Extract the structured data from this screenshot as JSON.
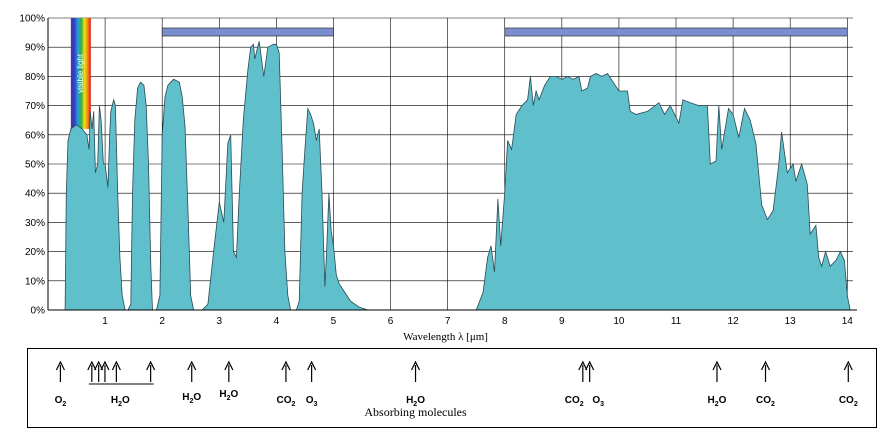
{
  "chart_data": {
    "type": "area",
    "xlabel": "Wavelength  λ [μm]",
    "ylabel": "",
    "xlim": [
      0,
      14.1
    ],
    "ylim": [
      0,
      100
    ],
    "x_ticks": [
      1,
      2,
      3,
      4,
      5,
      6,
      7,
      8,
      9,
      10,
      11,
      12,
      13,
      14
    ],
    "y_ticks": [
      "0%",
      "10%",
      "20%",
      "30%",
      "40%",
      "50%",
      "60%",
      "70%",
      "80%",
      "90%",
      "100%"
    ],
    "grid": true,
    "fill_color": "#5fbfca",
    "stroke_color": "#2a4a55",
    "visible_band_label": "visible light",
    "visible_band_range": [
      0.4,
      0.75
    ],
    "atmospheric_window_bars": [
      [
        2.0,
        5.0
      ],
      [
        8.0,
        14.0
      ]
    ],
    "window_bar_color": "#7b8fd0",
    "series": [
      {
        "points": [
          [
            0.3,
            0
          ],
          [
            0.32,
            40
          ],
          [
            0.35,
            58
          ],
          [
            0.4,
            62
          ],
          [
            0.5,
            63.5
          ],
          [
            0.6,
            62
          ],
          [
            0.68,
            60
          ],
          [
            0.72,
            55
          ],
          [
            0.74,
            68
          ],
          [
            0.77,
            62
          ],
          [
            0.8,
            68
          ],
          [
            0.83,
            47
          ],
          [
            0.87,
            50
          ],
          [
            0.9,
            70
          ],
          [
            0.93,
            65
          ],
          [
            0.97,
            50
          ],
          [
            1.0,
            50
          ],
          [
            1.05,
            42
          ],
          [
            1.08,
            60
          ],
          [
            1.1,
            68
          ],
          [
            1.15,
            72
          ],
          [
            1.18,
            70
          ],
          [
            1.22,
            40
          ],
          [
            1.26,
            18
          ],
          [
            1.3,
            5
          ],
          [
            1.35,
            0
          ],
          [
            1.4,
            0
          ],
          [
            1.45,
            2
          ],
          [
            1.48,
            40
          ],
          [
            1.52,
            65
          ],
          [
            1.57,
            76
          ],
          [
            1.62,
            78
          ],
          [
            1.68,
            77
          ],
          [
            1.72,
            70
          ],
          [
            1.76,
            50
          ],
          [
            1.8,
            15
          ],
          [
            1.83,
            0
          ],
          [
            1.9,
            0
          ],
          [
            1.96,
            5
          ],
          [
            2.0,
            60
          ],
          [
            2.05,
            73
          ],
          [
            2.1,
            77
          ],
          [
            2.2,
            79
          ],
          [
            2.3,
            78
          ],
          [
            2.35,
            73
          ],
          [
            2.4,
            63
          ],
          [
            2.45,
            35
          ],
          [
            2.5,
            5
          ],
          [
            2.55,
            0
          ],
          [
            2.7,
            0
          ],
          [
            2.8,
            2
          ],
          [
            2.9,
            20
          ],
          [
            3.0,
            37
          ],
          [
            3.08,
            30
          ],
          [
            3.15,
            57
          ],
          [
            3.2,
            60
          ],
          [
            3.25,
            20
          ],
          [
            3.3,
            18
          ],
          [
            3.35,
            40
          ],
          [
            3.42,
            65
          ],
          [
            3.5,
            82
          ],
          [
            3.55,
            90
          ],
          [
            3.6,
            91
          ],
          [
            3.62,
            86
          ],
          [
            3.7,
            92
          ],
          [
            3.78,
            80
          ],
          [
            3.85,
            90
          ],
          [
            3.95,
            91
          ],
          [
            4.0,
            91
          ],
          [
            4.05,
            88
          ],
          [
            4.1,
            55
          ],
          [
            4.15,
            20
          ],
          [
            4.2,
            5
          ],
          [
            4.25,
            0
          ],
          [
            4.35,
            0
          ],
          [
            4.4,
            3
          ],
          [
            4.45,
            40
          ],
          [
            4.5,
            55
          ],
          [
            4.55,
            69
          ],
          [
            4.6,
            67
          ],
          [
            4.65,
            64
          ],
          [
            4.7,
            58
          ],
          [
            4.75,
            62
          ],
          [
            4.8,
            40
          ],
          [
            4.85,
            8
          ],
          [
            4.88,
            20
          ],
          [
            4.92,
            40
          ],
          [
            4.96,
            27
          ],
          [
            5.0,
            22
          ],
          [
            5.05,
            12
          ],
          [
            5.1,
            9
          ],
          [
            5.2,
            6
          ],
          [
            5.3,
            3
          ],
          [
            5.45,
            1
          ],
          [
            5.6,
            0
          ],
          [
            7.5,
            0
          ],
          [
            7.62,
            6
          ],
          [
            7.7,
            18
          ],
          [
            7.76,
            22
          ],
          [
            7.82,
            13
          ],
          [
            7.88,
            38
          ],
          [
            7.93,
            22
          ],
          [
            8.0,
            40
          ],
          [
            8.05,
            58
          ],
          [
            8.12,
            55
          ],
          [
            8.2,
            67
          ],
          [
            8.3,
            70
          ],
          [
            8.4,
            72
          ],
          [
            8.45,
            80
          ],
          [
            8.5,
            70
          ],
          [
            8.55,
            75
          ],
          [
            8.6,
            72
          ],
          [
            8.7,
            77
          ],
          [
            8.8,
            80
          ],
          [
            8.9,
            80
          ],
          [
            9.0,
            79
          ],
          [
            9.1,
            80
          ],
          [
            9.2,
            79
          ],
          [
            9.3,
            80
          ],
          [
            9.35,
            75
          ],
          [
            9.45,
            76
          ],
          [
            9.5,
            80
          ],
          [
            9.6,
            81
          ],
          [
            9.7,
            80
          ],
          [
            9.8,
            81
          ],
          [
            9.9,
            78
          ],
          [
            10.0,
            75
          ],
          [
            10.15,
            75
          ],
          [
            10.2,
            68
          ],
          [
            10.3,
            67
          ],
          [
            10.5,
            68
          ],
          [
            10.7,
            71
          ],
          [
            10.8,
            67
          ],
          [
            10.9,
            70
          ],
          [
            11.0,
            66
          ],
          [
            11.05,
            64
          ],
          [
            11.12,
            72
          ],
          [
            11.25,
            71
          ],
          [
            11.4,
            70
          ],
          [
            11.55,
            70
          ],
          [
            11.6,
            50
          ],
          [
            11.7,
            51
          ],
          [
            11.75,
            70
          ],
          [
            11.8,
            55
          ],
          [
            11.92,
            69
          ],
          [
            12.0,
            67
          ],
          [
            12.1,
            59
          ],
          [
            12.2,
            69
          ],
          [
            12.3,
            65
          ],
          [
            12.4,
            57
          ],
          [
            12.5,
            36
          ],
          [
            12.6,
            31
          ],
          [
            12.7,
            34
          ],
          [
            12.8,
            50
          ],
          [
            12.85,
            61
          ],
          [
            12.95,
            47
          ],
          [
            13.05,
            50
          ],
          [
            13.1,
            44
          ],
          [
            13.2,
            50
          ],
          [
            13.3,
            43
          ],
          [
            13.35,
            26
          ],
          [
            13.45,
            29
          ],
          [
            13.5,
            18
          ],
          [
            13.55,
            15
          ],
          [
            13.62,
            20
          ],
          [
            13.7,
            15
          ],
          [
            13.8,
            17
          ],
          [
            13.88,
            20
          ],
          [
            13.95,
            17
          ],
          [
            14.0,
            5
          ],
          [
            14.05,
            0
          ]
        ]
      }
    ]
  },
  "molecules": {
    "title": "Absorbing molecules",
    "arrows_um": [
      0.2,
      0.75,
      0.87,
      0.98,
      1.18,
      1.78,
      2.5,
      3.15,
      4.15,
      4.6,
      6.42,
      9.35,
      9.47,
      11.7,
      12.55,
      14.0
    ],
    "h2o_group_range": [
      0.75,
      1.78
    ],
    "labels": [
      {
        "x_um": 0.2,
        "base": "O",
        "sub": "2"
      },
      {
        "x_um": 1.25,
        "base": "H",
        "sub": "2",
        "tail": "O"
      },
      {
        "x_um": 2.5,
        "base": "H",
        "sub": "2",
        "tail": "O"
      },
      {
        "x_um": 3.15,
        "base": "H",
        "sub": "2",
        "tail": "O"
      },
      {
        "x_um": 4.15,
        "base": "CO",
        "sub": "2"
      },
      {
        "x_um": 4.6,
        "base": "O",
        "sub": "3"
      },
      {
        "x_um": 6.42,
        "base": "H",
        "sub": "2",
        "tail": "O"
      },
      {
        "x_um": 9.2,
        "base": "CO",
        "sub": "2"
      },
      {
        "x_um": 9.62,
        "base": "O",
        "sub": "3"
      },
      {
        "x_um": 11.7,
        "base": "H",
        "sub": "2",
        "tail": "O"
      },
      {
        "x_um": 12.55,
        "base": "CO",
        "sub": "2"
      },
      {
        "x_um": 14.0,
        "base": "CO",
        "sub": "2"
      }
    ]
  }
}
